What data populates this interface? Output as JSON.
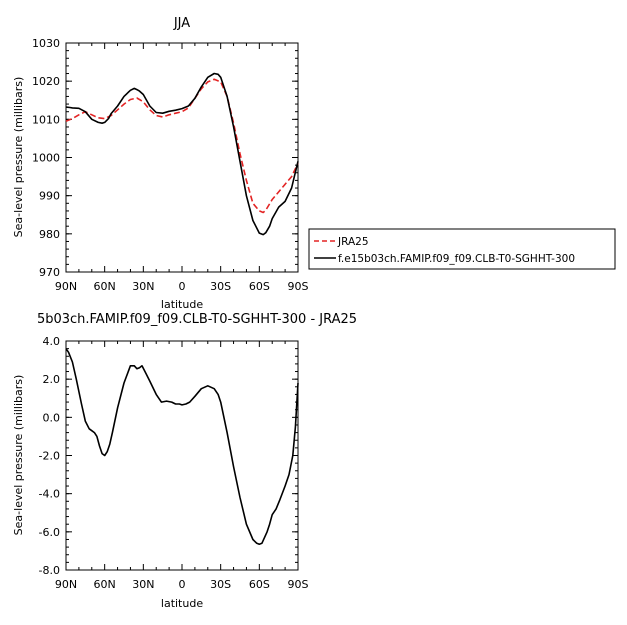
{
  "chart_data": [
    {
      "type": "line",
      "title": "JJA",
      "xlabel": "latitude",
      "ylabel": "Sea-level pressure (millibars)",
      "xlim": [
        90,
        -90
      ],
      "ylim": [
        970,
        1030
      ],
      "x_ticks": [
        90,
        60,
        30,
        0,
        -30,
        -60,
        -90
      ],
      "x_tick_labels": [
        "90N",
        "60N",
        "30N",
        "0",
        "30S",
        "60S",
        "90S"
      ],
      "y_ticks": [
        970,
        980,
        990,
        1000,
        1010,
        1020,
        1030
      ],
      "y_tick_labels": [
        "970",
        "980",
        "990",
        "1000",
        "1010",
        "1020",
        "1030"
      ],
      "grid": false,
      "legend_position": "right",
      "series": [
        {
          "name": "JRA25",
          "color": "#e32424",
          "style": "dashed",
          "x": [
            90,
            85,
            80,
            75,
            70,
            65,
            60,
            55,
            50,
            45,
            40,
            35,
            30,
            25,
            20,
            15,
            10,
            5,
            0,
            -5,
            -10,
            -15,
            -20,
            -25,
            -30,
            -35,
            -40,
            -45,
            -50,
            -55,
            -60,
            -63,
            -65,
            -70,
            -75,
            -80,
            -85,
            -90
          ],
          "y": [
            1009.5,
            1010.2,
            1011.2,
            1012.0,
            1011.2,
            1010.4,
            1010.2,
            1011.0,
            1012.5,
            1014.0,
            1015.2,
            1015.6,
            1014.6,
            1012.5,
            1011.0,
            1010.6,
            1011.2,
            1011.6,
            1012.0,
            1013.0,
            1015.5,
            1018.0,
            1019.8,
            1020.5,
            1019.8,
            1016.0,
            1009.0,
            1001.0,
            994.0,
            988.0,
            986.0,
            985.6,
            986.2,
            989.0,
            991.0,
            993.0,
            995.0,
            998.5
          ]
        },
        {
          "name": "f.e15b03ch.FAMIP.f09_f09.CLB-T0-SGHHT-300",
          "color": "#000000",
          "style": "solid",
          "x": [
            90,
            87,
            85,
            80,
            75,
            70,
            65,
            62,
            60,
            57,
            55,
            50,
            45,
            40,
            37,
            35,
            33,
            30,
            25,
            20,
            15,
            10,
            5,
            0,
            -5,
            -10,
            -15,
            -20,
            -25,
            -28,
            -30,
            -35,
            -40,
            -45,
            -50,
            -55,
            -60,
            -63,
            -65,
            -68,
            -70,
            -75,
            -80,
            -85,
            -90
          ],
          "y": [
            1013.2,
            1013.1,
            1013.0,
            1012.9,
            1012.0,
            1010.0,
            1009.2,
            1009.0,
            1009.2,
            1010.2,
            1011.5,
            1013.5,
            1016.0,
            1017.6,
            1018.1,
            1017.8,
            1017.4,
            1016.5,
            1013.5,
            1011.8,
            1011.6,
            1012.1,
            1012.4,
            1012.8,
            1013.5,
            1015.5,
            1018.5,
            1021.0,
            1022.0,
            1021.8,
            1021.0,
            1016.0,
            1008.0,
            999.0,
            990.0,
            983.5,
            980.2,
            979.8,
            980.3,
            982.0,
            984.0,
            987.0,
            988.5,
            992.0,
            999.0
          ]
        }
      ]
    },
    {
      "type": "line",
      "title": "5b03ch.FAMIP.f09_f09.CLB-T0-SGHHT-300 - JRA25",
      "xlabel": "latitude",
      "ylabel": "Sea-level pressure (millibars)",
      "xlim": [
        90,
        -90
      ],
      "ylim": [
        -8.0,
        4.0
      ],
      "x_ticks": [
        90,
        60,
        30,
        0,
        -30,
        -60,
        -90
      ],
      "x_tick_labels": [
        "90N",
        "60N",
        "30N",
        "0",
        "30S",
        "60S",
        "90S"
      ],
      "y_ticks": [
        -8,
        -6,
        -4,
        -2,
        0,
        2,
        4
      ],
      "y_tick_labels": [
        "-8.0",
        "-6.0",
        "-4.0",
        "-2.0",
        "0.0",
        "2.0",
        "4.0"
      ],
      "grid": false,
      "series": [
        {
          "color": "#000000",
          "style": "solid",
          "x": [
            90,
            88,
            85,
            82,
            78,
            75,
            72,
            70,
            68,
            66,
            64,
            62,
            60,
            58,
            56,
            54,
            50,
            45,
            40,
            37,
            35,
            33,
            31,
            28,
            25,
            20,
            16,
            12,
            8,
            5,
            2,
            0,
            -3,
            -6,
            -10,
            -15,
            -20,
            -25,
            -28,
            -30,
            -35,
            -40,
            -45,
            -50,
            -55,
            -58,
            -60,
            -62,
            -64,
            -66,
            -68,
            -70,
            -73,
            -76,
            -80,
            -83,
            -86,
            -88,
            -90
          ],
          "y": [
            3.6,
            3.4,
            2.9,
            2.0,
            0.7,
            -0.2,
            -0.6,
            -0.7,
            -0.8,
            -1.0,
            -1.5,
            -1.9,
            -2.0,
            -1.8,
            -1.4,
            -0.8,
            0.5,
            1.8,
            2.7,
            2.7,
            2.55,
            2.6,
            2.7,
            2.3,
            1.9,
            1.2,
            0.8,
            0.85,
            0.8,
            0.7,
            0.7,
            0.65,
            0.7,
            0.8,
            1.1,
            1.5,
            1.65,
            1.5,
            1.2,
            0.8,
            -0.8,
            -2.6,
            -4.2,
            -5.6,
            -6.4,
            -6.6,
            -6.65,
            -6.6,
            -6.3,
            -6.0,
            -5.6,
            -5.1,
            -4.8,
            -4.3,
            -3.6,
            -3.0,
            -2.0,
            -0.5,
            1.8
          ]
        }
      ]
    }
  ]
}
